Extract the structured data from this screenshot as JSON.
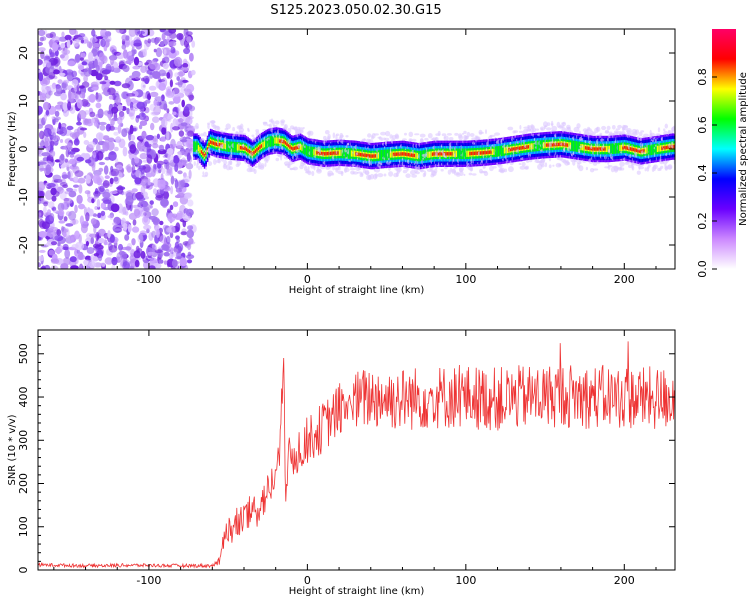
{
  "page_title": "S125.2023.050.02.30.G15",
  "chart_data": [
    {
      "type": "heatmap",
      "xlabel": "Height of straight line (km)",
      "ylabel": "Frequency (Hz)",
      "xlim": [
        -170,
        232
      ],
      "ylim": [
        -25,
        25
      ],
      "xticks": [
        -100,
        0,
        100,
        200
      ],
      "yticks": [
        -20,
        -10,
        0,
        10,
        20
      ],
      "grid": false,
      "noise_region_x": [
        -170,
        -72
      ],
      "ridge": {
        "x": [
          -70,
          -65,
          -62,
          -58,
          -50,
          -40,
          -35,
          -30,
          -25,
          -20,
          -15,
          -10,
          -5,
          0,
          10,
          20,
          30,
          40,
          50,
          60,
          70,
          80,
          90,
          100,
          110,
          120,
          130,
          140,
          150,
          160,
          170,
          180,
          190,
          200,
          210,
          220,
          230
        ],
        "y": [
          0.5,
          -1.5,
          1.5,
          1.0,
          0.5,
          0.2,
          -1.0,
          0.5,
          1.5,
          1.8,
          1.5,
          0.0,
          0.5,
          -0.5,
          -1.0,
          -0.8,
          -1.0,
          -1.5,
          -1.2,
          -1.0,
          -1.5,
          -1.0,
          -1.0,
          -1.0,
          -0.8,
          -0.5,
          0.0,
          0.5,
          0.8,
          1.0,
          0.5,
          0.0,
          0.0,
          0.3,
          -0.5,
          0.0,
          0.5
        ]
      },
      "colorbar": {
        "label": "Normalized spectral amplitude",
        "range": [
          0.0,
          1.0
        ],
        "ticks": [
          0.0,
          0.2,
          0.4,
          0.6,
          0.8
        ],
        "colors": [
          "#ffffff",
          "#cc88ff",
          "#6a00ff",
          "#0000ff",
          "#00ffff",
          "#00ff00",
          "#ffff00",
          "#ff0000",
          "#ff0066"
        ]
      }
    },
    {
      "type": "line",
      "xlabel": "Height of straight line (km)",
      "ylabel": "SNR (10 * v/v)",
      "xlim": [
        -170,
        232
      ],
      "ylim": [
        0,
        555
      ],
      "xticks": [
        -100,
        0,
        100,
        200
      ],
      "yticks": [
        0,
        100,
        200,
        300,
        400,
        500
      ],
      "grid": false,
      "series": [
        {
          "color": "#ee3333",
          "x": [
            -170,
            -140,
            -110,
            -80,
            -60,
            -55,
            -52,
            -48,
            -40,
            -32,
            -25,
            -20,
            -17,
            -15,
            -14,
            -12,
            -5,
            0,
            10,
            20,
            30,
            40,
            60,
            80,
            100,
            120,
            140,
            160,
            180,
            200,
            220,
            232
          ],
          "y": [
            12,
            10,
            11,
            10,
            10,
            20,
            100,
            90,
            120,
            140,
            180,
            220,
            280,
            520,
            200,
            250,
            280,
            300,
            330,
            370,
            390,
            400,
            395,
            400,
            400,
            395,
            400,
            405,
            400,
            400,
            395,
            400
          ],
          "spread": [
            4,
            4,
            4,
            4,
            4,
            10,
            35,
            35,
            40,
            45,
            45,
            50,
            50,
            60,
            60,
            55,
            55,
            55,
            60,
            60,
            70,
            75,
            75,
            75,
            75,
            75,
            75,
            75,
            75,
            75,
            75,
            75
          ]
        }
      ]
    }
  ]
}
